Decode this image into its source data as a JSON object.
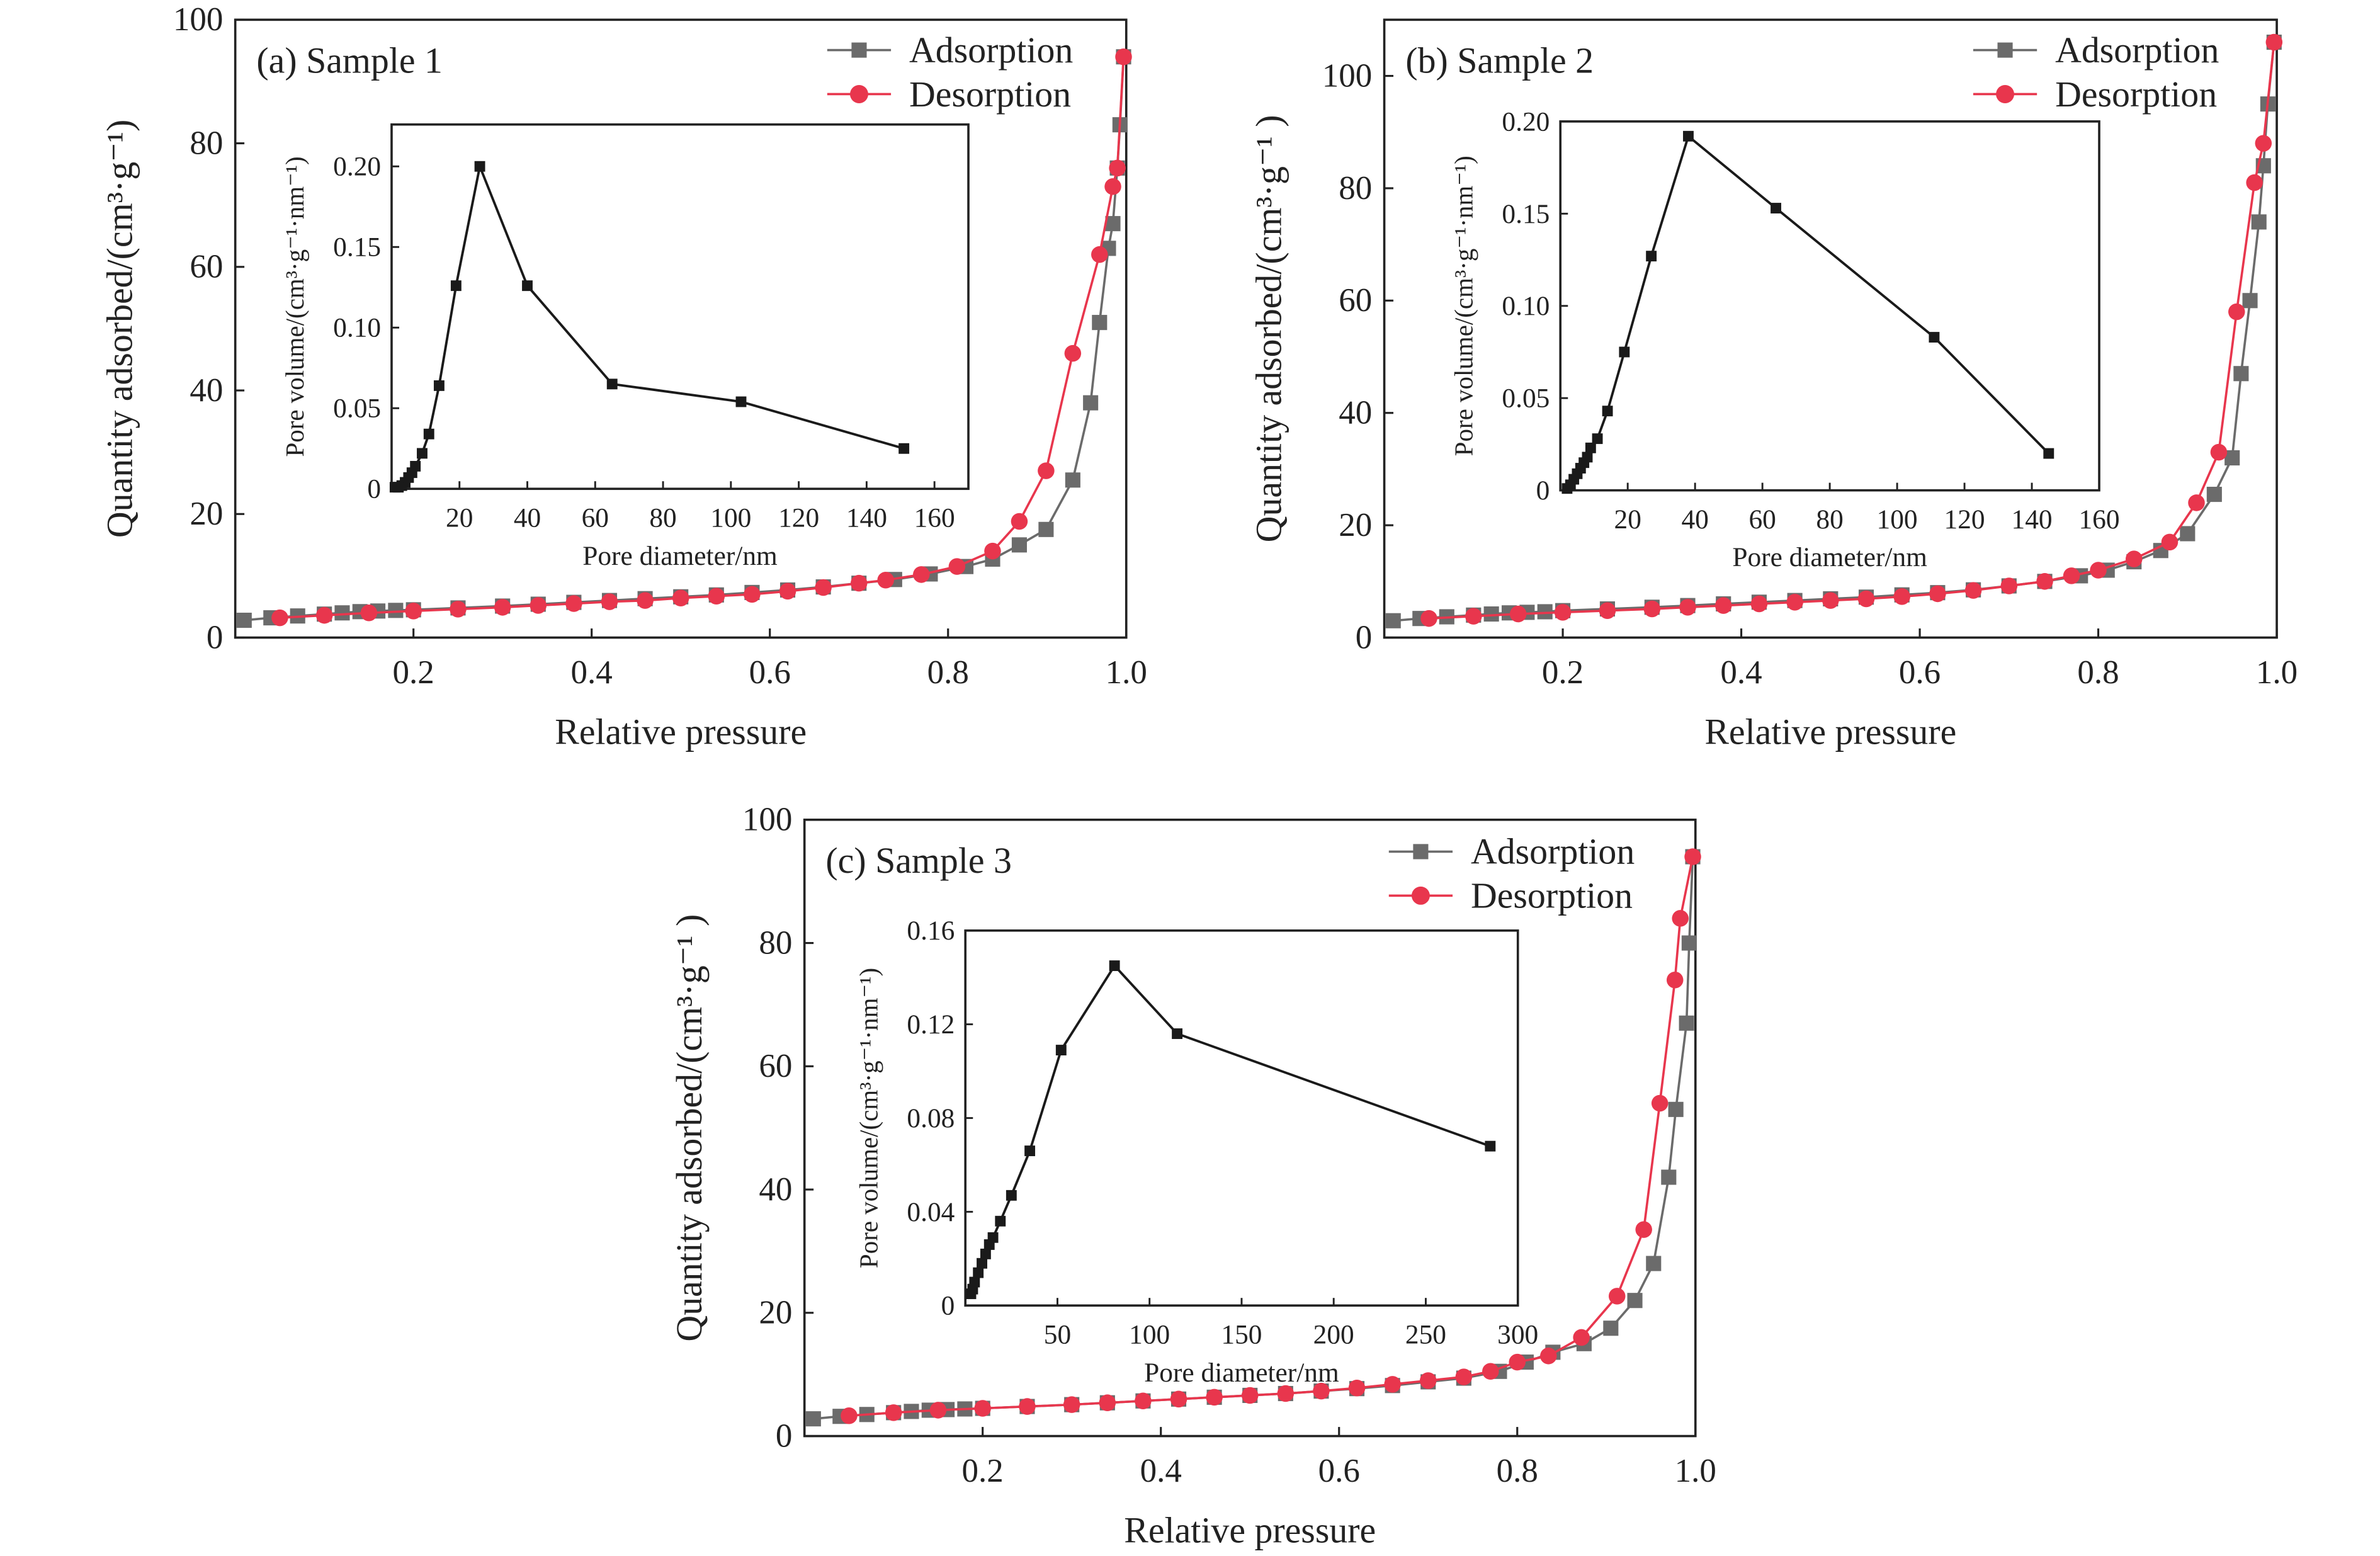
{
  "colors": {
    "adsorption": "#6b6b6b",
    "desorption": "#e8364d",
    "inset": "#1a1a1a",
    "axis": "#222222"
  },
  "chart_data": [
    {
      "type": "line",
      "panel_label": "(a) Sample 1",
      "xlabel": "Relative pressure",
      "ylabel": "Quantity adsorbed/(cm³·g⁻¹)",
      "xlim": [
        0,
        1.0
      ],
      "ylim": [
        0,
        100
      ],
      "xticks": [
        "0.2",
        "0.4",
        "0.6",
        "0.8",
        "1.0"
      ],
      "yticks": [
        "0",
        "20",
        "40",
        "60",
        "80",
        "100"
      ],
      "legend": "top-right",
      "series": [
        {
          "name": "Adsorption",
          "marker": "square",
          "x": [
            0.01,
            0.04,
            0.07,
            0.1,
            0.12,
            0.14,
            0.16,
            0.18,
            0.2,
            0.25,
            0.3,
            0.34,
            0.38,
            0.42,
            0.46,
            0.5,
            0.54,
            0.58,
            0.62,
            0.66,
            0.7,
            0.74,
            0.78,
            0.82,
            0.85,
            0.88,
            0.91,
            0.94,
            0.96,
            0.97,
            0.98,
            0.985,
            0.99,
            0.993,
            0.997
          ],
          "y": [
            2.8,
            3.2,
            3.5,
            3.8,
            4,
            4.2,
            4.3,
            4.4,
            4.5,
            4.8,
            5.1,
            5.4,
            5.7,
            6,
            6.3,
            6.6,
            6.9,
            7.3,
            7.7,
            8.2,
            8.8,
            9.4,
            10.3,
            11.5,
            12.7,
            15,
            17.5,
            25.5,
            38,
            51,
            63,
            67,
            76,
            83,
            94
          ]
        },
        {
          "name": "Desorption",
          "marker": "circle",
          "x": [
            0.997,
            0.99,
            0.985,
            0.97,
            0.94,
            0.91,
            0.88,
            0.85,
            0.81,
            0.77,
            0.73,
            0.7,
            0.66,
            0.62,
            0.58,
            0.54,
            0.5,
            0.46,
            0.42,
            0.38,
            0.34,
            0.3,
            0.25,
            0.2,
            0.15,
            0.1,
            0.05
          ],
          "y": [
            94,
            76,
            73,
            62,
            46,
            27,
            18.8,
            14,
            11.5,
            10.2,
            9.3,
            8.8,
            8.1,
            7.5,
            7,
            6.7,
            6.4,
            6,
            5.8,
            5.5,
            5.2,
            4.9,
            4.6,
            4.3,
            4,
            3.6,
            3.2
          ]
        }
      ],
      "inset": {
        "type": "line",
        "xlabel": "Pore diameter/nm",
        "ylabel": "Pore volume/(cm³·g⁻¹·nm⁻¹)",
        "xlim": [
          0,
          170
        ],
        "ylim": [
          0,
          0.226
        ],
        "xticks": [
          "20",
          "40",
          "60",
          "80",
          "100",
          "120",
          "140",
          "160"
        ],
        "yticks": [
          "0",
          "0.05",
          "0.10",
          "0.15",
          "0.20"
        ],
        "x": [
          1,
          2,
          3,
          4,
          5,
          6,
          7,
          9,
          11,
          14,
          19,
          26,
          40,
          65,
          103,
          151
        ],
        "y": [
          0.001,
          0.001,
          0.002,
          0.004,
          0.007,
          0.01,
          0.014,
          0.022,
          0.034,
          0.064,
          0.126,
          0.2,
          0.126,
          0.065,
          0.054,
          0.025
        ]
      }
    },
    {
      "type": "line",
      "panel_label": "(b) Sample 2",
      "xlabel": "Relative pressure",
      "ylabel": "Quantity adsorbed/(cm³·g⁻¹ )",
      "xlim": [
        0,
        1.0
      ],
      "ylim": [
        0,
        110
      ],
      "xticks": [
        "0.2",
        "0.4",
        "0.6",
        "0.8",
        "1.0"
      ],
      "yticks": [
        "0",
        "20",
        "40",
        "60",
        "80",
        "100"
      ],
      "legend": "top-right",
      "series": [
        {
          "name": "Adsorption",
          "marker": "square",
          "x": [
            0.01,
            0.04,
            0.07,
            0.1,
            0.12,
            0.14,
            0.16,
            0.18,
            0.2,
            0.25,
            0.3,
            0.34,
            0.38,
            0.42,
            0.46,
            0.5,
            0.54,
            0.58,
            0.62,
            0.66,
            0.7,
            0.74,
            0.78,
            0.81,
            0.84,
            0.87,
            0.9,
            0.93,
            0.95,
            0.96,
            0.97,
            0.98,
            0.985,
            0.99,
            0.997
          ],
          "y": [
            3,
            3.4,
            3.7,
            4,
            4.2,
            4.4,
            4.5,
            4.6,
            4.8,
            5.1,
            5.4,
            5.7,
            6,
            6.3,
            6.6,
            6.9,
            7.2,
            7.6,
            8,
            8.5,
            9.2,
            10,
            11,
            12,
            13.5,
            15.5,
            18.5,
            25.5,
            32,
            47,
            60,
            74,
            84,
            95,
            106
          ]
        },
        {
          "name": "Desorption",
          "marker": "circle",
          "x": [
            0.997,
            0.985,
            0.975,
            0.955,
            0.935,
            0.91,
            0.88,
            0.84,
            0.8,
            0.77,
            0.74,
            0.7,
            0.66,
            0.62,
            0.58,
            0.54,
            0.5,
            0.46,
            0.42,
            0.38,
            0.34,
            0.3,
            0.25,
            0.2,
            0.15,
            0.1,
            0.05
          ],
          "y": [
            106,
            88,
            81,
            58,
            33,
            24,
            17,
            14,
            12,
            11,
            10,
            9.2,
            8.4,
            7.8,
            7.3,
            6.9,
            6.6,
            6.3,
            6,
            5.7,
            5.4,
            5.1,
            4.8,
            4.5,
            4.2,
            3.8,
            3.4
          ]
        }
      ],
      "inset": {
        "type": "line",
        "xlabel": "Pore diameter/nm",
        "ylabel": "Pore volume/(cm³·g⁻¹·nm⁻¹)",
        "xlim": [
          0,
          160
        ],
        "ylim": [
          0,
          0.2
        ],
        "xticks": [
          "20",
          "40",
          "60",
          "80",
          "100",
          "120",
          "140",
          "160"
        ],
        "yticks": [
          "0",
          "0.05",
          "0.10",
          "0.15",
          "0.20"
        ],
        "x": [
          2,
          3,
          4,
          5,
          6,
          7,
          8,
          9,
          11,
          14,
          19,
          27,
          38,
          64,
          111,
          145
        ],
        "y": [
          0.001,
          0.003,
          0.006,
          0.009,
          0.012,
          0.015,
          0.018,
          0.023,
          0.028,
          0.043,
          0.075,
          0.127,
          0.192,
          0.153,
          0.083,
          0.02
        ]
      }
    },
    {
      "type": "line",
      "panel_label": "(c) Sample 3",
      "xlabel": "Relative pressure",
      "ylabel": "Quantity adsorbed/(cm³·g⁻¹ )",
      "xlim": [
        0,
        1.0
      ],
      "ylim": [
        0,
        100
      ],
      "xticks": [
        "0.2",
        "0.4",
        "0.6",
        "0.8",
        "1.0"
      ],
      "yticks": [
        "0",
        "20",
        "40",
        "60",
        "80",
        "100"
      ],
      "legend": "top-right",
      "series": [
        {
          "name": "Adsorption",
          "marker": "square",
          "x": [
            0.01,
            0.04,
            0.07,
            0.1,
            0.12,
            0.14,
            0.16,
            0.18,
            0.2,
            0.25,
            0.3,
            0.34,
            0.38,
            0.42,
            0.46,
            0.5,
            0.54,
            0.58,
            0.62,
            0.66,
            0.7,
            0.74,
            0.78,
            0.81,
            0.84,
            0.875,
            0.905,
            0.932,
            0.953,
            0.97,
            0.978,
            0.99,
            0.993,
            0.997
          ],
          "y": [
            2.8,
            3.2,
            3.5,
            3.8,
            4,
            4.2,
            4.3,
            4.4,
            4.5,
            4.8,
            5.1,
            5.4,
            5.7,
            6,
            6.3,
            6.6,
            6.9,
            7.3,
            7.7,
            8.2,
            8.8,
            9.4,
            10.5,
            12,
            13.6,
            15,
            17.5,
            22,
            28,
            42,
            53,
            67,
            80,
            94
          ]
        },
        {
          "name": "Desorption",
          "marker": "circle",
          "x": [
            0.997,
            0.983,
            0.977,
            0.96,
            0.942,
            0.912,
            0.872,
            0.835,
            0.8,
            0.77,
            0.74,
            0.7,
            0.66,
            0.62,
            0.58,
            0.54,
            0.5,
            0.46,
            0.42,
            0.38,
            0.34,
            0.3,
            0.25,
            0.2,
            0.15,
            0.1,
            0.05
          ],
          "y": [
            94,
            84,
            74,
            54,
            33.5,
            22.7,
            16,
            13,
            12,
            10.5,
            9.6,
            9,
            8.4,
            7.8,
            7.3,
            6.9,
            6.6,
            6.3,
            6,
            5.7,
            5.4,
            5.1,
            4.8,
            4.5,
            4.2,
            3.8,
            3.3
          ]
        }
      ],
      "inset": {
        "type": "line",
        "xlabel": "Pore diameter/nm",
        "ylabel": "Pore volume/(cm³·g⁻¹·nm⁻¹)",
        "xlim": [
          0,
          300
        ],
        "ylim": [
          0,
          0.16
        ],
        "xticks": [
          "50",
          "100",
          "150",
          "200",
          "250",
          "300"
        ],
        "yticks": [
          "0",
          "0.04",
          "0.08",
          "0.12",
          "0.16"
        ],
        "x": [
          3,
          4,
          5,
          7,
          9,
          11,
          13,
          15,
          19,
          25,
          35,
          52,
          81,
          115,
          285
        ],
        "y": [
          0.005,
          0.007,
          0.01,
          0.014,
          0.018,
          0.022,
          0.026,
          0.029,
          0.036,
          0.047,
          0.066,
          0.109,
          0.145,
          0.116,
          0.068
        ]
      }
    }
  ]
}
